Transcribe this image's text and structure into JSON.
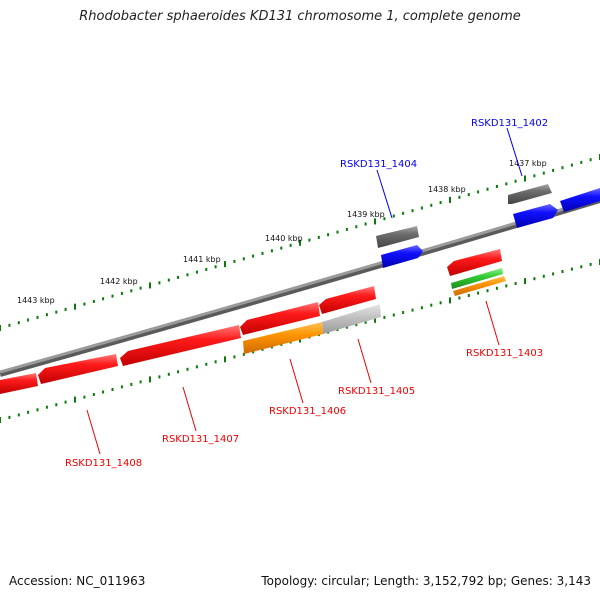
{
  "title": "Rhodobacter sphaeroides KD131 chromosome 1, complete genome",
  "footer": {
    "accession": "Accession: NC_011963",
    "summary": "Topology: circular; Length: 3,152,792 bp; Genes: 3,143"
  },
  "colors": {
    "forward_gene": "#0000ee",
    "reverse_gene": "#ee0000",
    "other_gene": "#666666",
    "rna": "#ff8c00",
    "rna_secondary": "#33cc33",
    "pseudo": "#b4b4b4",
    "tick": "#0a7a0a",
    "backbone": "#808080"
  },
  "scale_labels": [
    "1437 kbp",
    "1438 kbp",
    "1439 kbp",
    "1440 kbp",
    "1441 kbp",
    "1442 kbp",
    "1443 kbp"
  ],
  "gene_labels": [
    {
      "text": "RSKD131_1402",
      "strand": "forward"
    },
    {
      "text": "RSKD131_1404",
      "strand": "forward"
    },
    {
      "text": "RSKD131_1403",
      "strand": "reverse"
    },
    {
      "text": "RSKD131_1405",
      "strand": "reverse"
    },
    {
      "text": "RSKD131_1406",
      "strand": "reverse"
    },
    {
      "text": "RSKD131_1407",
      "strand": "reverse"
    },
    {
      "text": "RSKD131_1408",
      "strand": "reverse"
    }
  ]
}
